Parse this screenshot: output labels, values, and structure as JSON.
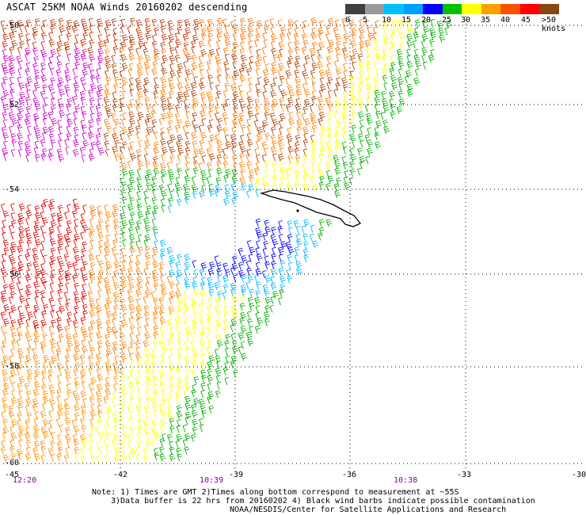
{
  "title": "ASCAT 25KM NOAA Winds 20160202 descending",
  "legend": {
    "colors": [
      "#404040",
      "#9a9a9a",
      "#00c0ff",
      "#00a0ff",
      "#0000ff",
      "#00c000",
      "#ffff00",
      "#ffa000",
      "#ff5000",
      "#ff0000",
      "#8b4513",
      "#c080ff",
      "#ff00ff",
      "#a000c0",
      "#600080"
    ],
    "tick_labels": [
      "0",
      "5",
      "10",
      "15",
      "20",
      "25",
      "30",
      "35",
      "40",
      "45",
      ">50 knots"
    ]
  },
  "axes": {
    "lat_labels": [
      "-50",
      "-52",
      "-54",
      "-56",
      "-58",
      "-60"
    ],
    "lon_labels": [
      "-45",
      "-42",
      "-39",
      "-36",
      "-33",
      "-30"
    ]
  },
  "times": [
    "12:20",
    "10:39",
    "10:38"
  ],
  "notes": [
    "Note: 1) Times are GMT 2)Times along bottom correspond to measurement at ~55S",
    "3)Data buffer is 22 hrs from 20160202 4) Black wind barbs indicate possible contamination",
    "NOAA/NESDIS/Center for Satellite Applications and Research"
  ]
}
